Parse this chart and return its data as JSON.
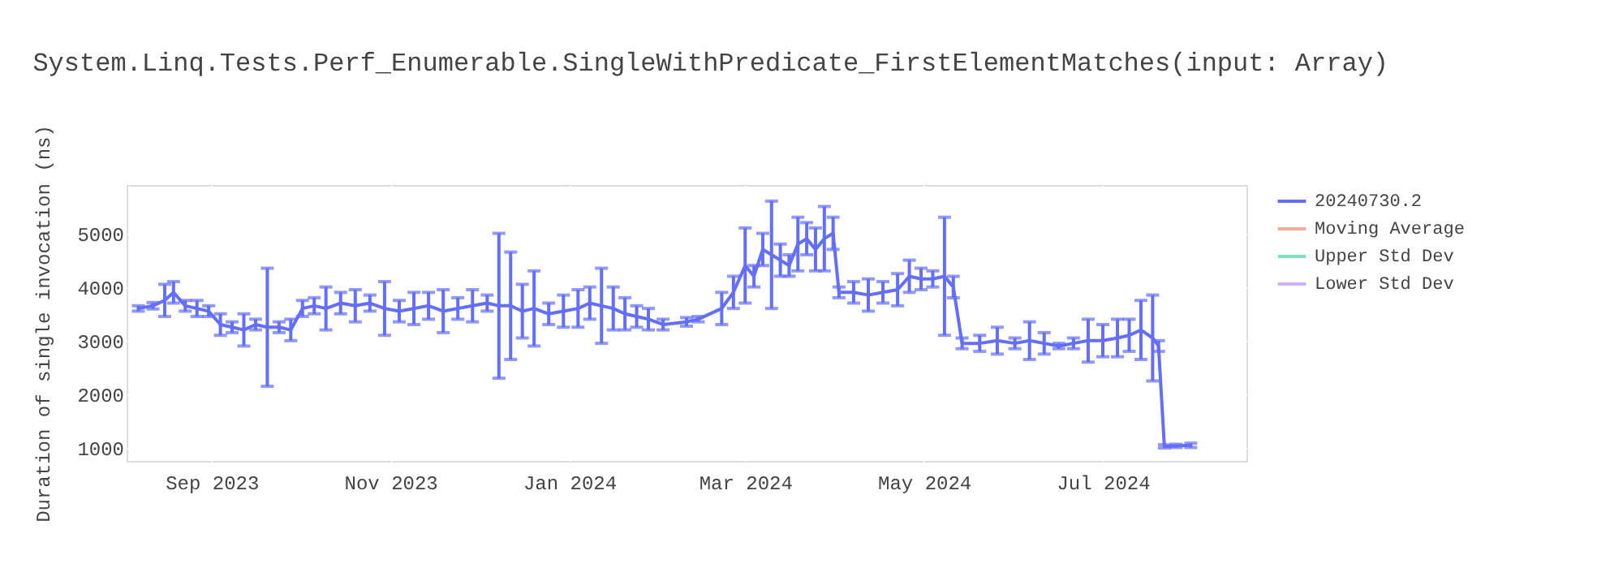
{
  "chart_data": {
    "type": "line",
    "title": "System.Linq.Tests.Perf_Enumerable.SingleWithPredicate_FirstElementMatches(input: Array)",
    "ylabel": "Duration of single invocation (ns)",
    "x": [
      "2023-08-07",
      "2023-08-12",
      "2023-08-16",
      "2023-08-19",
      "2023-08-23",
      "2023-08-27",
      "2023-08-31",
      "2023-09-04",
      "2023-09-08",
      "2023-09-12",
      "2023-09-16",
      "2023-09-20",
      "2023-09-24",
      "2023-09-28",
      "2023-10-02",
      "2023-10-06",
      "2023-10-10",
      "2023-10-15",
      "2023-10-20",
      "2023-10-25",
      "2023-10-30",
      "2023-11-04",
      "2023-11-09",
      "2023-11-14",
      "2023-11-19",
      "2023-11-24",
      "2023-11-29",
      "2023-12-04",
      "2023-12-08",
      "2023-12-12",
      "2023-12-16",
      "2023-12-20",
      "2023-12-25",
      "2023-12-30",
      "2024-01-04",
      "2024-01-08",
      "2024-01-12",
      "2024-01-16",
      "2024-01-20",
      "2024-01-24",
      "2024-01-28",
      "2024-02-02",
      "2024-02-10",
      "2024-02-14",
      "2024-02-22",
      "2024-02-26",
      "2024-03-01",
      "2024-03-04",
      "2024-03-07",
      "2024-03-10",
      "2024-03-13",
      "2024-03-16",
      "2024-03-19",
      "2024-03-22",
      "2024-03-25",
      "2024-03-28",
      "2024-03-31",
      "2024-04-02",
      "2024-04-07",
      "2024-04-12",
      "2024-04-17",
      "2024-04-22",
      "2024-04-26",
      "2024-04-30",
      "2024-05-04",
      "2024-05-08",
      "2024-05-11",
      "2024-05-14",
      "2024-05-20",
      "2024-05-26",
      "2024-06-01",
      "2024-06-06",
      "2024-06-11",
      "2024-06-16",
      "2024-06-21",
      "2024-06-26",
      "2024-07-01",
      "2024-07-06",
      "2024-07-10",
      "2024-07-14",
      "2024-07-18",
      "2024-07-20",
      "2024-07-22",
      "2024-07-26",
      "2024-07-31"
    ],
    "series": [
      {
        "name": "20240730.2",
        "color": "#636efa",
        "values": [
          3600,
          3650,
          3750,
          3900,
          3650,
          3600,
          3550,
          3300,
          3250,
          3200,
          3300,
          3250,
          3250,
          3200,
          3600,
          3650,
          3600,
          3700,
          3650,
          3700,
          3600,
          3550,
          3600,
          3650,
          3550,
          3600,
          3650,
          3700,
          3650,
          3650,
          3550,
          3600,
          3500,
          3550,
          3600,
          3700,
          3650,
          3600,
          3500,
          3450,
          3400,
          3300,
          3350,
          3400,
          3600,
          3900,
          4400,
          4200,
          4700,
          4600,
          4500,
          4400,
          4800,
          4900,
          4700,
          4900,
          5000,
          3900,
          3900,
          3850,
          3900,
          3950,
          4200,
          4150,
          4150,
          4200,
          4000,
          2950,
          2950,
          3000,
          2950,
          3000,
          2950,
          2900,
          2950,
          3000,
          3000,
          3050,
          3100,
          3200,
          3050,
          2900,
          1030,
          1040,
          1050
        ],
        "errors": [
          50,
          60,
          300,
          200,
          100,
          150,
          100,
          200,
          100,
          300,
          100,
          1100,
          100,
          200,
          150,
          150,
          400,
          200,
          300,
          150,
          500,
          200,
          300,
          250,
          400,
          200,
          300,
          150,
          1350,
          1000,
          500,
          700,
          200,
          300,
          350,
          300,
          700,
          400,
          300,
          200,
          200,
          100,
          80,
          50,
          300,
          300,
          700,
          200,
          300,
          1000,
          300,
          200,
          500,
          300,
          400,
          600,
          300,
          100,
          200,
          300,
          200,
          300,
          300,
          200,
          150,
          1100,
          200,
          100,
          150,
          250,
          100,
          350,
          200,
          50,
          100,
          400,
          300,
          350,
          300,
          550,
          800,
          100,
          30,
          30,
          40
        ]
      },
      {
        "name": "Moving Average",
        "color": "#f4a99a",
        "values": [
          null,
          null,
          null,
          null,
          null,
          null,
          null,
          null,
          null,
          null,
          null,
          null,
          null,
          null,
          null,
          null,
          null,
          null,
          null,
          null,
          null,
          null,
          null,
          null,
          null,
          null,
          null,
          null,
          null,
          null,
          null,
          null,
          null,
          null,
          null,
          null,
          null,
          null,
          null,
          null,
          null,
          null,
          null,
          null,
          null,
          null,
          null,
          null,
          null,
          null,
          null,
          null,
          null,
          null,
          null,
          null,
          null,
          null,
          null,
          null,
          null,
          null,
          null,
          null,
          null,
          null,
          null,
          null,
          null,
          null,
          null,
          null,
          null,
          null,
          null,
          null,
          null,
          null,
          null,
          null,
          null,
          null,
          null,
          null,
          null
        ]
      },
      {
        "name": "Upper Std Dev",
        "color": "#7fe0c0",
        "values": [
          null,
          null,
          null,
          null,
          null,
          null,
          null,
          null,
          null,
          null,
          null,
          null,
          null,
          null,
          null,
          null,
          null,
          null,
          null,
          null,
          null,
          null,
          null,
          null,
          null,
          null,
          null,
          null,
          null,
          null,
          null,
          null,
          null,
          null,
          null,
          null,
          null,
          null,
          null,
          null,
          null,
          null,
          null,
          null,
          null,
          null,
          null,
          null,
          null,
          null,
          null,
          null,
          null,
          null,
          null,
          null,
          null,
          null,
          null,
          null,
          null,
          null,
          null,
          null,
          null,
          null,
          null,
          null,
          null,
          null,
          null,
          null,
          null,
          null,
          null,
          null,
          null,
          null,
          null,
          null,
          null,
          null,
          null,
          null,
          null
        ]
      },
      {
        "name": "Lower Std Dev",
        "color": "#cdb0fb",
        "values": [
          null,
          null,
          null,
          null,
          null,
          null,
          null,
          null,
          null,
          null,
          null,
          null,
          null,
          null,
          null,
          null,
          null,
          null,
          null,
          null,
          null,
          null,
          null,
          null,
          null,
          null,
          null,
          null,
          null,
          null,
          null,
          null,
          null,
          null,
          null,
          null,
          null,
          null,
          null,
          null,
          null,
          null,
          null,
          null,
          null,
          null,
          null,
          null,
          null,
          null,
          null,
          null,
          null,
          null,
          null,
          null,
          null,
          null,
          null,
          null,
          null,
          null,
          null,
          null,
          null,
          null,
          null,
          null,
          null,
          null,
          null,
          null,
          null,
          null,
          null,
          null,
          null,
          null,
          null,
          null,
          null,
          null,
          null,
          null,
          null
        ]
      }
    ],
    "xlim": [
      "2023-08-03",
      "2024-08-19"
    ],
    "xticks": [
      {
        "value": "2023-09-01",
        "label": "Sep 2023"
      },
      {
        "value": "2023-11-01",
        "label": "Nov 2023"
      },
      {
        "value": "2024-01-01",
        "label": "Jan 2024"
      },
      {
        "value": "2024-03-01",
        "label": "Mar 2024"
      },
      {
        "value": "2024-05-01",
        "label": "May 2024"
      },
      {
        "value": "2024-07-01",
        "label": "Jul 2024"
      }
    ],
    "ylim": [
      760,
      5900
    ],
    "yticks": [
      1000,
      2000,
      3000,
      4000,
      5000
    ],
    "grid": true,
    "legend": "right",
    "marker": "none",
    "line_style": "solid"
  }
}
